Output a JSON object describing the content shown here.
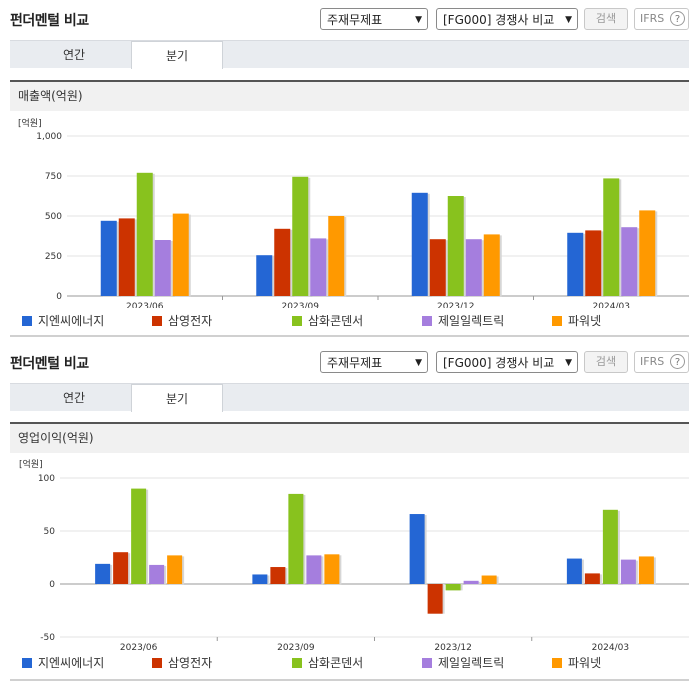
{
  "sections": [
    {
      "title": "펀더멘털 비교",
      "statement_select": "주재무제표",
      "peer_select": "[FG000] 경쟁사 비교",
      "search_button": "검색",
      "ifrs_label": "IFRS",
      "help_label": "?",
      "tabs": [
        "연간",
        "분기"
      ],
      "active_tab": 1,
      "metric_label": "매출액(억원)",
      "chart_data": {
        "type": "bar",
        "unit_label": "[억원]",
        "categories": [
          "2023/06",
          "2023/09",
          "2023/12",
          "2024/03"
        ],
        "ylim": [
          0,
          1000
        ],
        "yticks": [
          0,
          250,
          500,
          750,
          1000
        ],
        "ytick_labels": [
          "0",
          "250",
          "500",
          "750",
          "1,000"
        ],
        "series": [
          {
            "name": "지엔씨에너지",
            "color": "#2466d4",
            "values": [
              470,
              255,
              645,
              395
            ]
          },
          {
            "name": "삼영전자",
            "color": "#cc3300",
            "values": [
              485,
              420,
              355,
              410
            ]
          },
          {
            "name": "삼화콘덴서",
            "color": "#88c21e",
            "values": [
              770,
              745,
              625,
              735
            ]
          },
          {
            "name": "제일일렉트릭",
            "color": "#a57ede",
            "values": [
              350,
              360,
              355,
              430
            ]
          },
          {
            "name": "파워넷",
            "color": "#ff9900",
            "values": [
              515,
              500,
              385,
              535
            ]
          }
        ]
      }
    },
    {
      "title": "펀더멘털 비교",
      "statement_select": "주재무제표",
      "peer_select": "[FG000] 경쟁사 비교",
      "search_button": "검색",
      "ifrs_label": "IFRS",
      "help_label": "?",
      "tabs": [
        "연간",
        "분기"
      ],
      "active_tab": 1,
      "metric_label": "영업이익(억원)",
      "chart_data": {
        "type": "bar",
        "unit_label": "[억원]",
        "categories": [
          "2023/06",
          "2023/09",
          "2023/12",
          "2024/03"
        ],
        "ylim": [
          -50,
          100
        ],
        "yticks": [
          -50,
          0,
          50,
          100
        ],
        "ytick_labels": [
          "-50",
          "0",
          "50",
          "100"
        ],
        "series": [
          {
            "name": "지엔씨에너지",
            "color": "#2466d4",
            "values": [
              19,
              9,
              66,
              24
            ]
          },
          {
            "name": "삼영전자",
            "color": "#cc3300",
            "values": [
              30,
              16,
              -28,
              10
            ]
          },
          {
            "name": "삼화콘덴서",
            "color": "#88c21e",
            "values": [
              90,
              85,
              -6,
              70
            ]
          },
          {
            "name": "제일일렉트릭",
            "color": "#a57ede",
            "values": [
              18,
              27,
              3,
              23
            ]
          },
          {
            "name": "파워넷",
            "color": "#ff9900",
            "values": [
              27,
              28,
              8,
              26
            ]
          }
        ]
      }
    }
  ]
}
